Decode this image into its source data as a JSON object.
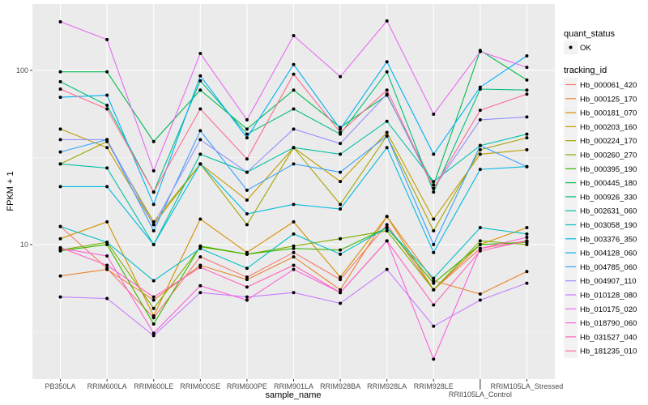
{
  "chart_data": {
    "type": "line",
    "xlabel": "sample_name",
    "ylabel": "FPKM + 1",
    "y_scale": "log10",
    "ylim": [
      1.69,
      240
    ],
    "y_ticks": [
      10,
      100
    ],
    "y_tick_labels": [
      "10",
      "100"
    ],
    "grid": true,
    "legend_position": "right",
    "categories": [
      "PB350LA",
      "RRIM600LA",
      "RRIM600LE",
      "RRIM600SE",
      "RRIM600PE",
      "RRIM901LA",
      "RRIM928BA",
      "RRIM928LA",
      "RRIM928LE",
      "RRII105LA_Control",
      "RRIM105LA_Stressed"
    ],
    "legend_shape": {
      "title": "quant_status",
      "entries": [
        "OK"
      ]
    },
    "legend_color_title": "tracking_id",
    "series": [
      {
        "name": "Hb_000061_420",
        "color": "#F8766D",
        "values": [
          12.7,
          7.3,
          3.8,
          8.5,
          6.5,
          9,
          6.3,
          13,
          5.5,
          9.5,
          10.5
        ]
      },
      {
        "name": "Hb_000125_170",
        "color": "#EA8331",
        "values": [
          6.6,
          7.2,
          4.8,
          7.6,
          6.3,
          8.5,
          5.5,
          14.5,
          6.2,
          5.2,
          7
        ]
      },
      {
        "name": "Hb_000181_070",
        "color": "#D89000",
        "values": [
          10.8,
          13.5,
          3.9,
          14,
          9,
          13.5,
          6.5,
          14.5,
          5.5,
          10,
          12.5
        ]
      },
      {
        "name": "Hb_000203_160",
        "color": "#C09B00",
        "values": [
          46,
          36,
          13,
          29,
          18,
          36,
          23,
          44,
          14,
          33,
          35
        ]
      },
      {
        "name": "Hb_000224_170",
        "color": "#A3A500",
        "values": [
          29,
          39,
          13.5,
          29,
          13,
          36,
          17,
          42,
          12,
          35,
          41
        ]
      },
      {
        "name": "Hb_000260_270",
        "color": "#7CAE00",
        "values": [
          9.3,
          10.3,
          4.3,
          9.7,
          8.8,
          9.8,
          10.8,
          12,
          5.5,
          10.5,
          10
        ]
      },
      {
        "name": "Hb_000395_190",
        "color": "#39B600",
        "values": [
          9.2,
          10,
          3.5,
          9.8,
          8.8,
          9.5,
          9.3,
          12.5,
          6,
          10,
          10.3
        ]
      },
      {
        "name": "Hb_000445_180",
        "color": "#00BB4E",
        "values": [
          98,
          98,
          39,
          77,
          46,
          77,
          47,
          72,
          22,
          130,
          88
        ]
      },
      {
        "name": "Hb_000926_330",
        "color": "#00BF7D",
        "values": [
          86,
          63,
          20,
          87,
          43,
          60,
          43,
          98,
          20,
          78,
          77
        ]
      },
      {
        "name": "Hb_002631_060",
        "color": "#00C1A3",
        "values": [
          29,
          27.5,
          10,
          33,
          26,
          36,
          33,
          51,
          23,
          37,
          43
        ]
      },
      {
        "name": "Hb_003058_190",
        "color": "#00BFC4",
        "values": [
          12.7,
          10.3,
          6.2,
          9.5,
          7.3,
          11.5,
          8.8,
          12.5,
          6.4,
          12.5,
          11.5
        ]
      },
      {
        "name": "Hb_003376_350",
        "color": "#00BAE0",
        "values": [
          21.5,
          21.5,
          10,
          29,
          15,
          17,
          16,
          36,
          9,
          27,
          28
        ]
      },
      {
        "name": "Hb_004128_060",
        "color": "#00B0F6",
        "values": [
          70,
          72,
          17,
          93,
          41,
          108,
          46,
          112,
          33,
          80,
          121
        ]
      },
      {
        "name": "Hb_004785_060",
        "color": "#35A2FF",
        "values": [
          34,
          40,
          12,
          45,
          20.5,
          29,
          26,
          42,
          10,
          37,
          28
        ]
      },
      {
        "name": "Hb_004907_110",
        "color": "#9590FF",
        "values": [
          40,
          40,
          13,
          40,
          26,
          46,
          38,
          73,
          21,
          52,
          54
        ]
      },
      {
        "name": "Hb_010128_080",
        "color": "#C77CFF",
        "values": [
          5.0,
          4.9,
          3.0,
          5.3,
          5.0,
          5.3,
          4.6,
          7.2,
          3.4,
          4.8,
          6
        ]
      },
      {
        "name": "Hb_010175_020",
        "color": "#E76BF3",
        "values": [
          190,
          150,
          26.5,
          125,
          52,
          158,
          92,
          192,
          56,
          128,
          104
        ]
      },
      {
        "name": "Hb_018790_060",
        "color": "#FA62DB",
        "values": [
          9.5,
          8.6,
          3.1,
          5.8,
          4.8,
          7.2,
          5.3,
          10.5,
          2.2,
          9.5,
          11
        ]
      },
      {
        "name": "Hb_031527_040",
        "color": "#FF62BC",
        "values": [
          9.6,
          7.6,
          5,
          7.4,
          5.7,
          7.6,
          5.3,
          10.5,
          4.5,
          9.2,
          10.5
        ]
      },
      {
        "name": "Hb_181235_010",
        "color": "#FF6C91",
        "values": [
          78,
          60,
          20,
          60,
          31,
          95,
          44,
          77,
          21,
          59,
          73
        ]
      }
    ]
  }
}
